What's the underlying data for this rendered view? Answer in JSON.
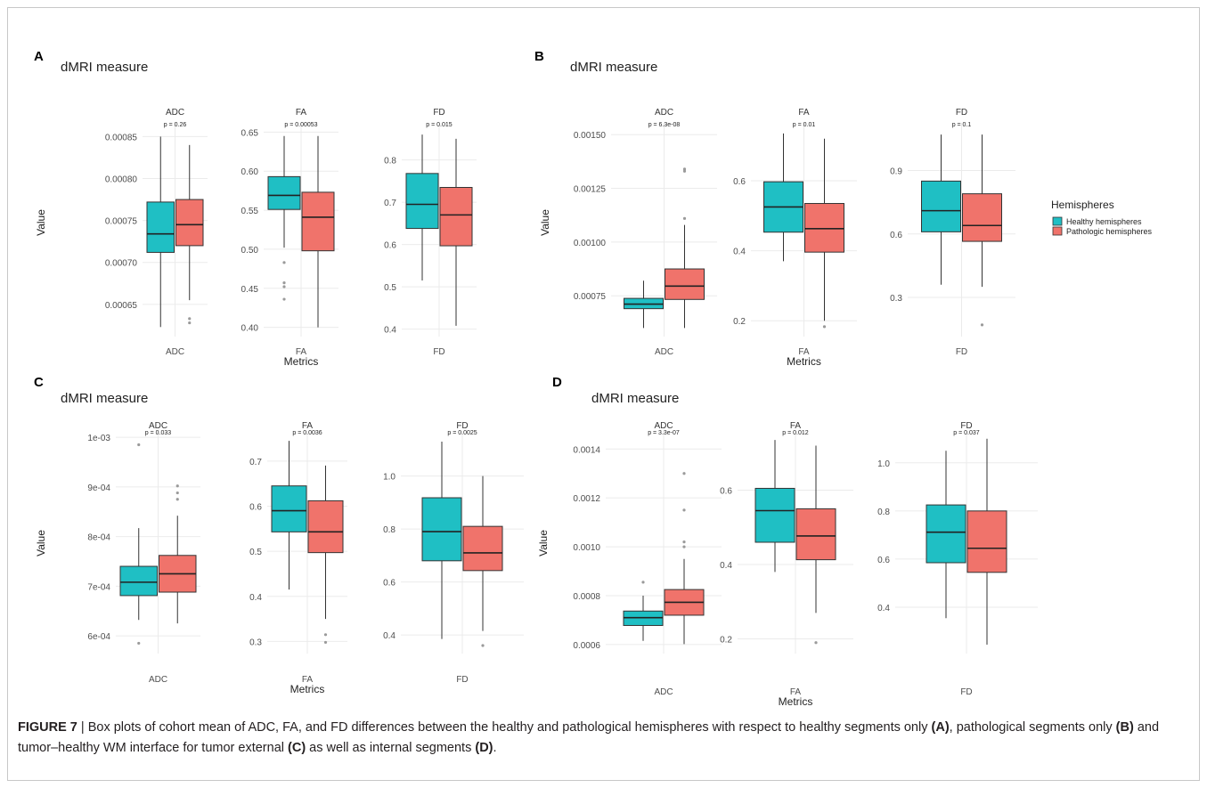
{
  "legend": {
    "title": "Hemispheres",
    "entries": [
      {
        "label": "Healthy hemispheres",
        "color": "#1fbfc4"
      },
      {
        "label": "Pathologic hemispheres",
        "color": "#f0736b"
      }
    ]
  },
  "caption": {
    "figure_label": "FIGURE 7",
    "separator": " | ",
    "text_1": "Box plots of cohort mean of ADC, FA, and FD differences between the healthy and pathological hemispheres with respect to healthy segments only ",
    "ref_a": "(A)",
    "text_2": ", pathological segments only ",
    "ref_b": "(B)",
    "text_3": " and tumor–healthy WM interface for tumor external ",
    "ref_c": "(C)",
    "text_4": " as well as internal segments ",
    "ref_d": "(D)",
    "text_5": "."
  },
  "chart_data": [
    {
      "panel": "A",
      "type": "box",
      "title": "dMRI measure",
      "xlabel": "Metrics",
      "ylabel": "Value",
      "facets": [
        {
          "name": "ADC",
          "pvalue": "p = 0.26",
          "ylim": [
            0.000618,
            0.00086
          ],
          "ticks": [
            {
              "v": 0.00065,
              "l": "0.00065"
            },
            {
              "v": 0.0007,
              "l": "0.00070"
            },
            {
              "v": 0.00075,
              "l": "0.00075"
            },
            {
              "v": 0.0008,
              "l": "0.00080"
            },
            {
              "v": 0.00085,
              "l": "0.00085"
            }
          ],
          "boxes": [
            {
              "group": "Healthy hemispheres",
              "min": 0.000623,
              "q1": 0.000712,
              "median": 0.000734,
              "q3": 0.000772,
              "max": 0.00085,
              "outliers": []
            },
            {
              "group": "Pathologic hemispheres",
              "min": 0.000655,
              "q1": 0.00072,
              "median": 0.000745,
              "q3": 0.000775,
              "max": 0.00084,
              "outliers": [
                0.000628,
                0.000633
              ]
            }
          ]
        },
        {
          "name": "FA",
          "pvalue": "p = 0.00053",
          "ylim": [
            0.395,
            0.655
          ],
          "ticks": [
            {
              "v": 0.4,
              "l": "0.40"
            },
            {
              "v": 0.45,
              "l": "0.45"
            },
            {
              "v": 0.5,
              "l": "0.50"
            },
            {
              "v": 0.55,
              "l": "0.55"
            },
            {
              "v": 0.6,
              "l": "0.60"
            },
            {
              "v": 0.65,
              "l": "0.65"
            }
          ],
          "boxes": [
            {
              "group": "Healthy hemispheres",
              "min": 0.502,
              "q1": 0.551,
              "median": 0.569,
              "q3": 0.593,
              "max": 0.645,
              "outliers": [
                0.483,
                0.457,
                0.452,
                0.436
              ]
            },
            {
              "group": "Pathologic hemispheres",
              "min": 0.4,
              "q1": 0.498,
              "median": 0.541,
              "q3": 0.573,
              "max": 0.645,
              "outliers": []
            }
          ]
        },
        {
          "name": "FD",
          "pvalue": "p = 0.015",
          "ylim": [
            0.395,
            0.875
          ],
          "ticks": [
            {
              "v": 0.4,
              "l": "0.4"
            },
            {
              "v": 0.5,
              "l": "0.5"
            },
            {
              "v": 0.6,
              "l": "0.6"
            },
            {
              "v": 0.7,
              "l": "0.7"
            },
            {
              "v": 0.8,
              "l": "0.8"
            }
          ],
          "boxes": [
            {
              "group": "Healthy hemispheres",
              "min": 0.515,
              "q1": 0.638,
              "median": 0.695,
              "q3": 0.768,
              "max": 0.86,
              "outliers": []
            },
            {
              "group": "Pathologic hemispheres",
              "min": 0.408,
              "q1": 0.597,
              "median": 0.67,
              "q3": 0.735,
              "max": 0.85,
              "outliers": []
            }
          ]
        }
      ]
    },
    {
      "panel": "B",
      "type": "box",
      "title": "dMRI measure",
      "xlabel": "Metrics",
      "ylabel": "Value",
      "facets": [
        {
          "name": "ADC",
          "pvalue": "p = 6.3e-08",
          "ylim": [
            0.000585,
            0.00153
          ],
          "ticks": [
            {
              "v": 0.00075,
              "l": "0.00075"
            },
            {
              "v": 0.001,
              "l": "0.00100"
            },
            {
              "v": 0.00125,
              "l": "0.00125"
            },
            {
              "v": 0.0015,
              "l": "0.00150"
            }
          ],
          "boxes": [
            {
              "group": "Healthy hemispheres",
              "min": 0.0006,
              "q1": 0.00069,
              "median": 0.000711,
              "q3": 0.000738,
              "max": 0.00082,
              "outliers": []
            },
            {
              "group": "Pathologic hemispheres",
              "min": 0.0006,
              "q1": 0.000733,
              "median": 0.000795,
              "q3": 0.000875,
              "max": 0.00108,
              "outliers": [
                0.00134,
                0.00133,
                0.00111
              ]
            }
          ]
        },
        {
          "name": "FA",
          "pvalue": "p = 0.01",
          "ylim": [
            0.17,
            0.75
          ],
          "ticks": [
            {
              "v": 0.2,
              "l": "0.2"
            },
            {
              "v": 0.4,
              "l": "0.4"
            },
            {
              "v": 0.6,
              "l": "0.6"
            }
          ],
          "boxes": [
            {
              "group": "Healthy hemispheres",
              "min": 0.37,
              "q1": 0.453,
              "median": 0.525,
              "q3": 0.597,
              "max": 0.735,
              "outliers": []
            },
            {
              "group": "Pathologic hemispheres",
              "min": 0.2,
              "q1": 0.396,
              "median": 0.463,
              "q3": 0.535,
              "max": 0.72,
              "outliers": [
                0.183
              ]
            }
          ]
        },
        {
          "name": "FD",
          "pvalue": "p = 0.1",
          "ylim": [
            0.14,
            1.1
          ],
          "ticks": [
            {
              "v": 0.3,
              "l": "0.3"
            },
            {
              "v": 0.6,
              "l": "0.6"
            },
            {
              "v": 0.9,
              "l": "0.9"
            }
          ],
          "boxes": [
            {
              "group": "Healthy hemispheres",
              "min": 0.36,
              "q1": 0.61,
              "median": 0.71,
              "q3": 0.85,
              "max": 1.07,
              "outliers": []
            },
            {
              "group": "Pathologic hemispheres",
              "min": 0.35,
              "q1": 0.565,
              "median": 0.64,
              "q3": 0.79,
              "max": 1.07,
              "outliers": [
                0.17
              ]
            }
          ]
        }
      ]
    },
    {
      "panel": "C",
      "type": "box",
      "title": "dMRI measure",
      "xlabel": "Metrics",
      "ylabel": "Value",
      "facets": [
        {
          "name": "ADC",
          "pvalue": "p = 0.033",
          "ylim": [
            0.000575,
            0.001002
          ],
          "ticks": [
            {
              "v": 0.0006,
              "l": "6e-04"
            },
            {
              "v": 0.0007,
              "l": "7e-04"
            },
            {
              "v": 0.0008,
              "l": "8e-04"
            },
            {
              "v": 0.0009,
              "l": "9e-04"
            },
            {
              "v": 0.001,
              "l": "1e-03"
            }
          ],
          "boxes": [
            {
              "group": "Healthy hemispheres",
              "min": 0.000632,
              "q1": 0.000681,
              "median": 0.000708,
              "q3": 0.00074,
              "max": 0.000817,
              "outliers": [
                0.000585,
                0.000985
              ]
            },
            {
              "group": "Pathologic hemispheres",
              "min": 0.000625,
              "q1": 0.000688,
              "median": 0.000725,
              "q3": 0.000762,
              "max": 0.000842,
              "outliers": [
                0.000902,
                0.000888,
                0.000875
              ]
            }
          ]
        },
        {
          "name": "FA",
          "pvalue": "p = 0.0036",
          "ylim": [
            0.285,
            0.755
          ],
          "ticks": [
            {
              "v": 0.3,
              "l": "0.3"
            },
            {
              "v": 0.4,
              "l": "0.4"
            },
            {
              "v": 0.5,
              "l": "0.5"
            },
            {
              "v": 0.6,
              "l": "0.6"
            },
            {
              "v": 0.7,
              "l": "0.7"
            }
          ],
          "boxes": [
            {
              "group": "Healthy hemispheres",
              "min": 0.415,
              "q1": 0.543,
              "median": 0.59,
              "q3": 0.645,
              "max": 0.745,
              "outliers": []
            },
            {
              "group": "Pathologic hemispheres",
              "min": 0.35,
              "q1": 0.497,
              "median": 0.543,
              "q3": 0.612,
              "max": 0.69,
              "outliers": [
                0.315,
                0.298
              ]
            }
          ]
        },
        {
          "name": "FD",
          "pvalue": "p = 0.0025",
          "ylim": [
            0.35,
            1.15
          ],
          "ticks": [
            {
              "v": 0.4,
              "l": "0.4"
            },
            {
              "v": 0.6,
              "l": "0.6"
            },
            {
              "v": 0.8,
              "l": "0.8"
            },
            {
              "v": 1.0,
              "l": "1.0"
            }
          ],
          "boxes": [
            {
              "group": "Healthy hemispheres",
              "min": 0.385,
              "q1": 0.68,
              "median": 0.79,
              "q3": 0.918,
              "max": 1.13,
              "outliers": []
            },
            {
              "group": "Pathologic hemispheres",
              "min": 0.415,
              "q1": 0.643,
              "median": 0.71,
              "q3": 0.81,
              "max": 1.0,
              "outliers": [
                0.36
              ]
            }
          ]
        }
      ]
    },
    {
      "panel": "D",
      "type": "box",
      "title": "dMRI measure",
      "xlabel": "Metrics",
      "ylabel": "Value",
      "facets": [
        {
          "name": "ADC",
          "pvalue": "p = 3.3e-07",
          "ylim": [
            0.000585,
            0.001452
          ],
          "ticks": [
            {
              "v": 0.0006,
              "l": "0.0006"
            },
            {
              "v": 0.0008,
              "l": "0.0008"
            },
            {
              "v": 0.001,
              "l": "0.0010"
            },
            {
              "v": 0.0012,
              "l": "0.0012"
            },
            {
              "v": 0.0014,
              "l": "0.0014"
            }
          ],
          "boxes": [
            {
              "group": "Healthy hemispheres",
              "min": 0.000615,
              "q1": 0.000678,
              "median": 0.00071,
              "q3": 0.000737,
              "max": 0.0008,
              "outliers": [
                0.000855
              ]
            },
            {
              "group": "Pathologic hemispheres",
              "min": 0.000602,
              "q1": 0.00072,
              "median": 0.000773,
              "q3": 0.000825,
              "max": 0.00095,
              "outliers": [
                0.0013,
                0.00115,
                0.00102,
                0.001
              ]
            }
          ]
        },
        {
          "name": "FA",
          "pvalue": "p = 0.012",
          "ylim": [
            0.175,
            0.745
          ],
          "ticks": [
            {
              "v": 0.2,
              "l": "0.2"
            },
            {
              "v": 0.4,
              "l": "0.4"
            },
            {
              "v": 0.6,
              "l": "0.6"
            }
          ],
          "boxes": [
            {
              "group": "Healthy hemispheres",
              "min": 0.38,
              "q1": 0.46,
              "median": 0.545,
              "q3": 0.605,
              "max": 0.735,
              "outliers": []
            },
            {
              "group": "Pathologic hemispheres",
              "min": 0.27,
              "q1": 0.413,
              "median": 0.477,
              "q3": 0.55,
              "max": 0.72,
              "outliers": [
                0.19
              ]
            }
          ]
        },
        {
          "name": "FD",
          "pvalue": "p = 0.037",
          "ylim": [
            0.23,
            1.11
          ],
          "ticks": [
            {
              "v": 0.4,
              "l": "0.4"
            },
            {
              "v": 0.6,
              "l": "0.6"
            },
            {
              "v": 0.8,
              "l": "0.8"
            },
            {
              "v": 1.0,
              "l": "1.0"
            }
          ],
          "boxes": [
            {
              "group": "Healthy hemispheres",
              "min": 0.355,
              "q1": 0.585,
              "median": 0.712,
              "q3": 0.825,
              "max": 1.05,
              "outliers": []
            },
            {
              "group": "Pathologic hemispheres",
              "min": 0.245,
              "q1": 0.545,
              "median": 0.645,
              "q3": 0.8,
              "max": 1.1,
              "outliers": []
            }
          ]
        }
      ]
    }
  ]
}
